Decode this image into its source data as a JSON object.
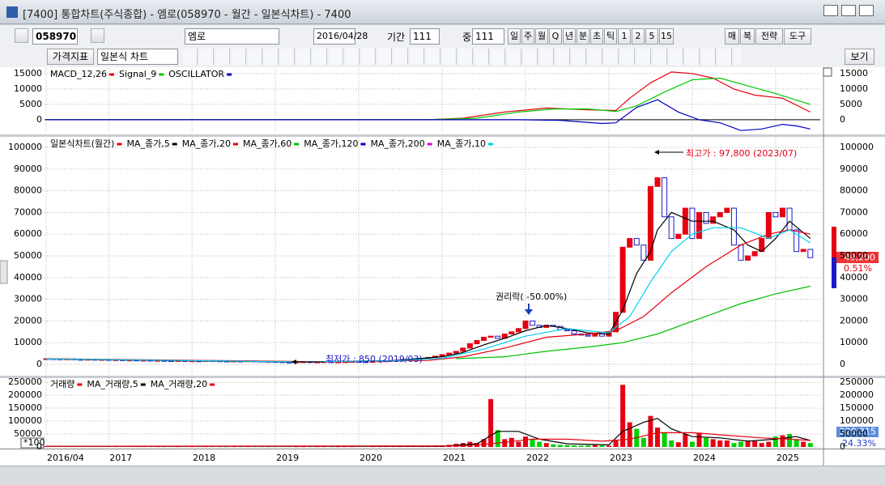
{
  "window": {
    "title": "[7400]  통합차트(주식종합) - 엠로(058970 - 월간 - 일본식차트) - 7400"
  },
  "toolbar": {
    "code": "058970",
    "name": "엠로",
    "date": "2016/04/28",
    "period_label": "기간",
    "period": "111",
    "count_label": "중",
    "count": "111",
    "periods": [
      "일",
      "주",
      "월",
      "Q",
      "년",
      "분",
      "초",
      "틱",
      "1",
      "2",
      "5",
      "15"
    ],
    "buttons": [
      "매",
      "복",
      "전략",
      "도구"
    ],
    "indicator": "가격지표",
    "chart_kind": "일본식 차트",
    "view": "보기"
  },
  "chart_data": [
    {
      "type": "line",
      "series": [
        {
          "name": "MACD_12,26",
          "color": "#e60012",
          "x": [
            0,
            55,
            60,
            66,
            72,
            78,
            82,
            84,
            87,
            90,
            93,
            96,
            99,
            102,
            106,
            110
          ],
          "values": [
            0,
            0,
            500,
            2500,
            3800,
            3200,
            3000,
            7000,
            12000,
            15500,
            15000,
            13500,
            10000,
            8000,
            7000,
            2500
          ]
        },
        {
          "name": "Signal_9",
          "color": "#00c800",
          "x": [
            0,
            55,
            62,
            68,
            73,
            78,
            82,
            85,
            89,
            93,
            97,
            101,
            105,
            110
          ],
          "values": [
            0,
            0,
            500,
            2500,
            3500,
            3500,
            2700,
            4500,
            9000,
            13000,
            13500,
            11000,
            8500,
            5000
          ]
        },
        {
          "name": "OSCILLATOR",
          "color": "#0000c0",
          "x": [
            0,
            55,
            62,
            68,
            74,
            80,
            82,
            85,
            88,
            91,
            94,
            97,
            100,
            103,
            106,
            108,
            110
          ],
          "values": [
            0,
            0,
            0,
            0,
            -200,
            -1200,
            -1000,
            4000,
            6500,
            2500,
            0,
            -1000,
            -3500,
            -3000,
            -1500,
            -2000,
            -3000
          ]
        }
      ],
      "ylim": [
        -4500,
        16800
      ],
      "yticks": [
        0,
        5000,
        10000,
        15000
      ]
    },
    {
      "type": "candlestick",
      "candles": {
        "name": "일본식차트(월간)",
        "color": "#e60012",
        "down_color": "#1a1ac8",
        "values": [
          2600,
          2500,
          2400,
          2500,
          2300,
          2200,
          2300,
          2100,
          2200,
          2000,
          2100,
          1900,
          2000,
          1800,
          1900,
          1700,
          1800,
          1700,
          1600,
          1700,
          1500,
          1600,
          1500,
          1700,
          1600,
          1500,
          1400,
          1500,
          1400,
          1600,
          1500,
          1400,
          1300,
          1200,
          1000,
          950,
          1100,
          1200,
          1000,
          1100,
          1200,
          1000,
          1100,
          1200,
          1300,
          1200,
          1000,
          1300,
          1500,
          1600,
          1800,
          2000,
          2300,
          2500,
          2800,
          3200,
          3800,
          4500,
          5200,
          6000,
          7500,
          9500,
          11000,
          12500,
          13000,
          12000,
          14000,
          15000,
          16500,
          20000,
          18000,
          17000,
          18000,
          17500,
          16000,
          15500,
          14000,
          13500,
          13000,
          14000,
          13000,
          15000,
          24000,
          54000,
          58000,
          55000,
          48000,
          82000,
          86000,
          68000,
          58000,
          60000,
          72000,
          58000,
          70000,
          65000,
          68000,
          70000,
          72000,
          55000,
          48000,
          50000,
          52000,
          58000,
          70000,
          68000,
          72000,
          62000,
          52000,
          53000,
          49200
        ]
      },
      "lines": [
        {
          "name": "MA_종가,5",
          "color": "#000000",
          "x": [
            0,
            20,
            35,
            50,
            57,
            60,
            63,
            66,
            69,
            72,
            75,
            78,
            81,
            83,
            85,
            87,
            88,
            90,
            93,
            96,
            99,
            101,
            103,
            105,
            107,
            110
          ],
          "values": [
            2500,
            1700,
            1050,
            1700,
            3500,
            5500,
            9000,
            12000,
            15500,
            18000,
            16500,
            14500,
            14000,
            25000,
            42000,
            52000,
            62000,
            70000,
            66000,
            66000,
            62000,
            55000,
            52000,
            58000,
            66000,
            58000
          ]
        },
        {
          "name": "MA_종가,20",
          "color": "#e60012",
          "x": [
            0,
            25,
            40,
            55,
            60,
            66,
            72,
            78,
            82,
            86,
            90,
            95,
            100,
            104,
            107,
            110
          ],
          "values": [
            2600,
            1700,
            1200,
            1800,
            3500,
            7500,
            12500,
            14000,
            15500,
            22000,
            33000,
            45000,
            55000,
            60000,
            62000,
            60000
          ]
        },
        {
          "name": "MA_종가,60",
          "color": "#00c000",
          "x": [
            59,
            66,
            72,
            78,
            83,
            88,
            94,
            100,
            105,
            110
          ],
          "values": [
            2600,
            3500,
            6000,
            8000,
            10000,
            14000,
            21000,
            28000,
            32500,
            36000
          ]
        },
        {
          "name": "MA_종가,120",
          "color": "#0000c0",
          "x": [],
          "values": []
        },
        {
          "name": "MA_종가,200",
          "color": "#e000e0",
          "x": [],
          "values": []
        },
        {
          "name": "MA_종가,10",
          "color": "#00d0f0",
          "x": [
            0,
            20,
            36,
            50,
            57,
            63,
            69,
            75,
            81,
            84,
            87,
            90,
            93,
            96,
            100,
            104,
            107,
            110
          ],
          "values": [
            2500,
            1750,
            1100,
            1600,
            2800,
            7000,
            13000,
            16500,
            14500,
            22000,
            38000,
            52000,
            60000,
            63000,
            63000,
            58000,
            62000,
            56000
          ]
        }
      ],
      "high_note": "최고가 : 97,800 (2023/07)",
      "low_note": "최저가 : 850 (2019/03)",
      "rights_note": "권리락( -50.00%)",
      "last_price": "49,200",
      "last_change": "0.51%",
      "ylim": [
        -5600,
        104500
      ],
      "yticks": [
        0,
        10000,
        20000,
        30000,
        40000,
        50000,
        60000,
        70000,
        80000,
        90000,
        100000
      ]
    },
    {
      "type": "bar",
      "categories": [
        "2016/04",
        null,
        null,
        null,
        null,
        null,
        null,
        null,
        null,
        "2017",
        null,
        null,
        null,
        null,
        null,
        null,
        null,
        null,
        null,
        null,
        null,
        "2018",
        null,
        null,
        null,
        null,
        null,
        null,
        null,
        null,
        null,
        null,
        null,
        "2019",
        null,
        null,
        null,
        null,
        null,
        null,
        null,
        null,
        null,
        null,
        null,
        "2020",
        null,
        null,
        null,
        null,
        null,
        null,
        null,
        null,
        null,
        null,
        null,
        "2021",
        null,
        null,
        null,
        null,
        null,
        null,
        null,
        null,
        null,
        null,
        null,
        "2022",
        null,
        null,
        null,
        null,
        null,
        null,
        null,
        null,
        null,
        null,
        null,
        "2023",
        null,
        null,
        null,
        null,
        null,
        null,
        null,
        null,
        null,
        null,
        null,
        "2024",
        null,
        null,
        null,
        null,
        null,
        null,
        null,
        null,
        null,
        null,
        null,
        "2025",
        null,
        null,
        null,
        null,
        null
      ],
      "bars": {
        "name": "거래량",
        "color": "#e60012",
        "down_color": "#00d000",
        "values": [
          3000,
          2500,
          2000,
          2200,
          1800,
          2000,
          1500,
          1800,
          1600,
          2000,
          1500,
          1400,
          1800,
          1200,
          1300,
          1500,
          1200,
          1100,
          1300,
          1000,
          1200,
          1100,
          1000,
          1300,
          1200,
          1000,
          900,
          1100,
          1000,
          1200,
          1000,
          900,
          1100,
          1000,
          1500,
          1200,
          1000,
          900,
          1100,
          1000,
          1200,
          1000,
          900,
          1100,
          1000,
          1200,
          1500,
          1300,
          1600,
          1800,
          2000,
          2500,
          2200,
          3000,
          3500,
          4000,
          5000,
          5000,
          8000,
          12000,
          15000,
          20000,
          15000,
          30000,
          185000,
          65000,
          30000,
          35000,
          20000,
          40000,
          30000,
          20000,
          15000,
          10000,
          8000,
          7000,
          6000,
          5000,
          6000,
          7000,
          6000,
          5000,
          25000,
          240000,
          95000,
          70000,
          35000,
          120000,
          75000,
          55000,
          25000,
          18000,
          50000,
          20000,
          55000,
          35000,
          30000,
          25000,
          25000,
          15000,
          20000,
          25000,
          22000,
          15000,
          20000,
          40000,
          45000,
          50000,
          30000,
          20000,
          15000
        ]
      },
      "lines": [
        {
          "name": "MA_거래량,5",
          "color": "#000000",
          "x": [
            0,
            57,
            62,
            65,
            68,
            71,
            75,
            81,
            83,
            86,
            88,
            90,
            93,
            97,
            101,
            105,
            108,
            110
          ],
          "values": [
            2500,
            2500,
            12000,
            60000,
            60000,
            30000,
            12000,
            8000,
            60000,
            95000,
            110000,
            70000,
            40000,
            35000,
            22000,
            30000,
            40000,
            25000
          ]
        },
        {
          "name": "MA_거래량,20",
          "color": "#e60012",
          "x": [
            0,
            60,
            65,
            70,
            75,
            80,
            84,
            88,
            93,
            98,
            103,
            107,
            110
          ],
          "values": [
            2500,
            4000,
            15000,
            30000,
            30000,
            22000,
            30000,
            55000,
            55000,
            45000,
            35000,
            30000,
            25000
          ]
        }
      ],
      "unit_note": "*100",
      "current_value": "228,315",
      "current_change": "24.33%",
      "ylim": [
        -3200,
        266000
      ],
      "yticks": [
        0,
        50000,
        100000,
        150000,
        200000,
        250000
      ]
    }
  ]
}
